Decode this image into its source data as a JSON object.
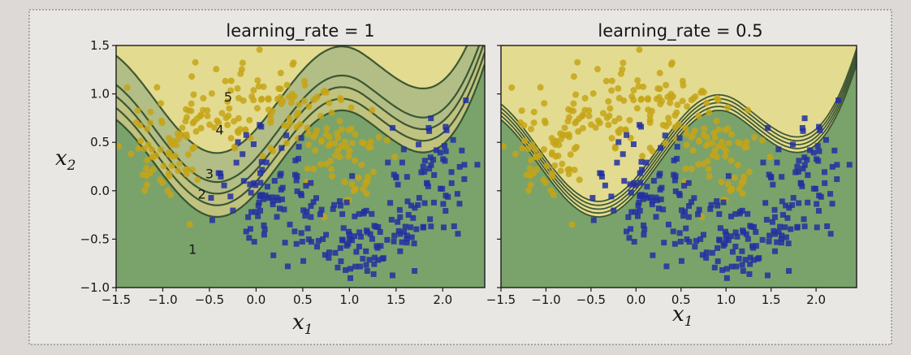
{
  "chart_data": [
    {
      "type": "scatter",
      "title": "learning_rate = 1",
      "xlabel": "x",
      "xlabel_sub": "1",
      "ylabel": "x",
      "ylabel_sub": "2",
      "xlim": [
        -1.5,
        2.45
      ],
      "ylim": [
        -1.0,
        1.5
      ],
      "xticks": [
        -1.5,
        -1.0,
        -0.5,
        0.0,
        0.5,
        1.0,
        1.5,
        2.0
      ],
      "xtick_labels": [
        "−1.5",
        "−1.0",
        "−0.5",
        "0.0",
        "0.5",
        "1.0",
        "1.5",
        "2.0"
      ],
      "yticks": [
        -1.0,
        -0.5,
        0.0,
        0.5,
        1.0,
        1.5
      ],
      "ytick_labels": [
        "−1.0",
        "−0.5",
        "0.0",
        "0.5",
        "1.0",
        "1.5"
      ],
      "contours": [
        {
          "label": "1",
          "offset": 0.0,
          "label_at": [
            -0.68,
            -0.6
          ]
        },
        {
          "label": "2",
          "offset": 0.12,
          "label_at": [
            -0.58,
            -0.03
          ]
        },
        {
          "label": "3",
          "offset": 0.24,
          "label_at": [
            -0.5,
            0.18
          ]
        },
        {
          "label": "4",
          "offset": 0.36,
          "label_at": [
            -0.39,
            0.63
          ]
        },
        {
          "label": "5",
          "offset": 0.66,
          "label_at": [
            -0.3,
            0.97
          ]
        }
      ],
      "background_colors": {
        "class_0": "#e3db8f",
        "class_1": "#7aa36b",
        "class_0_dark": "#c9c57c",
        "blend": "#a9b884"
      },
      "series": [
        {
          "marker": "circle",
          "color": "#c6a418"
        },
        {
          "marker": "square",
          "color": "#2230a0"
        }
      ]
    },
    {
      "type": "scatter",
      "title": "learning_rate = 0.5",
      "xlabel": "x",
      "xlabel_sub": "1",
      "xlim": [
        -1.5,
        2.45
      ],
      "ylim": [
        -1.0,
        1.5
      ],
      "xticks": [
        -1.5,
        -1.0,
        -0.5,
        0.0,
        0.5,
        1.0,
        1.5,
        2.0
      ],
      "xtick_labels": [
        "−1.5",
        "−1.0",
        "−0.5",
        "0.0",
        "0.5",
        "1.0",
        "1.5",
        "2.0"
      ],
      "yticks": [
        -1.0,
        -0.5,
        0.0,
        0.5,
        1.0,
        1.5
      ],
      "ytick_labels": [],
      "contours": [
        {
          "offset": 0.0
        },
        {
          "offset": 0.04
        },
        {
          "offset": 0.08
        },
        {
          "offset": 0.12
        },
        {
          "offset": 0.16
        }
      ],
      "background_colors": {
        "class_0": "#e3db8f",
        "class_1": "#7aa36b"
      },
      "series": [
        {
          "marker": "circle",
          "color": "#c6a418"
        },
        {
          "marker": "square",
          "color": "#2230a0"
        }
      ]
    }
  ]
}
